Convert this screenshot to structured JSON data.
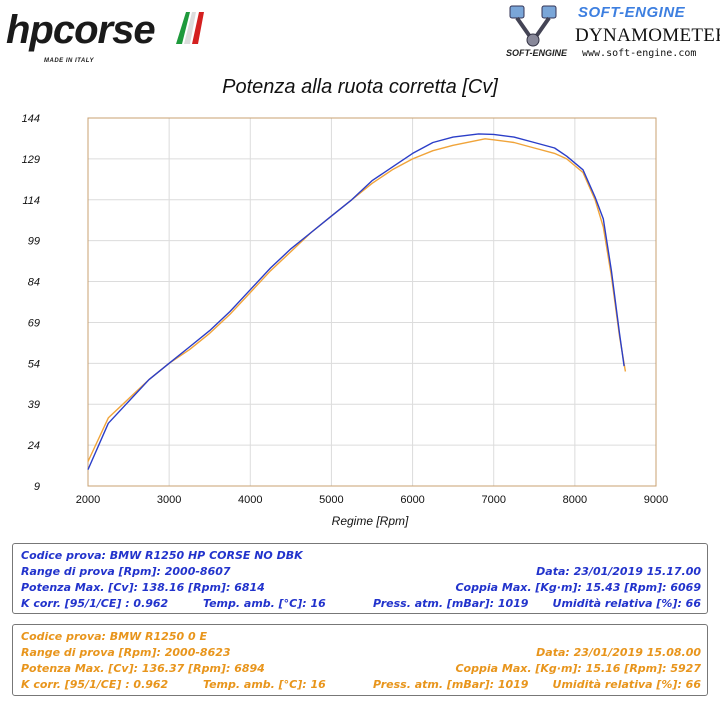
{
  "header": {
    "left_logo_text": "hpcorse",
    "left_logo_subtitle": "MADE IN ITALY",
    "right_logo_line1": "SOFT-ENGINE",
    "right_logo_line2": "DYNAMOMETERS",
    "right_logo_line3": "www.soft-engine.com",
    "right_logo_tag": "SOFT-ENGINE"
  },
  "colors": {
    "series1": "#2b3ec8",
    "series2": "#f0a43a",
    "grid": "#dcdcdc",
    "plot_border": "#c8a070"
  },
  "chart_data": {
    "type": "line",
    "title": "Potenza alla ruota corretta [Cv]",
    "xlabel": "Regime [Rpm]",
    "ylabel": "",
    "xlim": [
      2000,
      9000
    ],
    "ylim": [
      9,
      144
    ],
    "xticks": [
      "2000",
      "3000",
      "4000",
      "5000",
      "6000",
      "7000",
      "8000",
      "9000"
    ],
    "yticks": [
      "9",
      "24",
      "39",
      "54",
      "69",
      "84",
      "99",
      "114",
      "129",
      "144"
    ],
    "grid": true,
    "series": [
      {
        "color": "#2b3ec8",
        "x": [
          2000,
          2250,
          2500,
          2750,
          3000,
          3250,
          3500,
          3750,
          4000,
          4250,
          4500,
          4750,
          5000,
          5250,
          5500,
          5750,
          6000,
          6250,
          6500,
          6814,
          7000,
          7250,
          7500,
          7750,
          7900,
          8100,
          8250,
          8350,
          8450,
          8550,
          8607
        ],
        "y": [
          15,
          32,
          40,
          48,
          54,
          60,
          66,
          73,
          81,
          89,
          96,
          102,
          108,
          114,
          121,
          126,
          131,
          135,
          137,
          138.16,
          138,
          137,
          135,
          133,
          130,
          125,
          115,
          107,
          88,
          65,
          53
        ]
      },
      {
        "color": "#f0a43a",
        "x": [
          2000,
          2250,
          2500,
          2750,
          3000,
          3250,
          3500,
          3750,
          4000,
          4250,
          4500,
          4750,
          5000,
          5250,
          5500,
          5750,
          6000,
          6250,
          6500,
          6894,
          7000,
          7250,
          7500,
          7750,
          7900,
          8100,
          8250,
          8350,
          8450,
          8550,
          8623
        ],
        "y": [
          18,
          34,
          41,
          48,
          54,
          59,
          65,
          72,
          80,
          88,
          95,
          102,
          108,
          114,
          120,
          125,
          129,
          132,
          134,
          136.37,
          136,
          135,
          133,
          131,
          129,
          124,
          114,
          104,
          86,
          64,
          51
        ]
      }
    ]
  },
  "info1": {
    "codice": "Codice prova: BMW R1250 HP CORSE NO DBK",
    "range": "Range di prova [Rpm]: 2000-8607",
    "data": "Data: 23/01/2019  15.17.00",
    "potenza": "Potenza Max. [Cv]: 138.16  [Rpm]: 6814",
    "coppia": "Coppia Max. [Kg·m]: 15.43  [Rpm]: 6069",
    "kcorr": "K corr. [95/1/CE] : 0.962",
    "temp": "Temp. amb. [°C]: 16",
    "press": "Press. atm. [mBar]: 1019",
    "umid": "Umidità relativa [%]: 66"
  },
  "info2": {
    "codice": "Codice prova: BMW R1250  0 E",
    "range": "Range di prova [Rpm]: 2000-8623",
    "data": "Data: 23/01/2019  15.08.00",
    "potenza": "Potenza Max. [Cv]: 136.37  [Rpm]: 6894",
    "coppia": "Coppia Max. [Kg·m]: 15.16  [Rpm]: 5927",
    "kcorr": "K corr. [95/1/CE] : 0.962",
    "temp": "Temp. amb. [°C]: 16",
    "press": "Press. atm. [mBar]: 1019",
    "umid": "Umidità relativa [%]: 66"
  }
}
